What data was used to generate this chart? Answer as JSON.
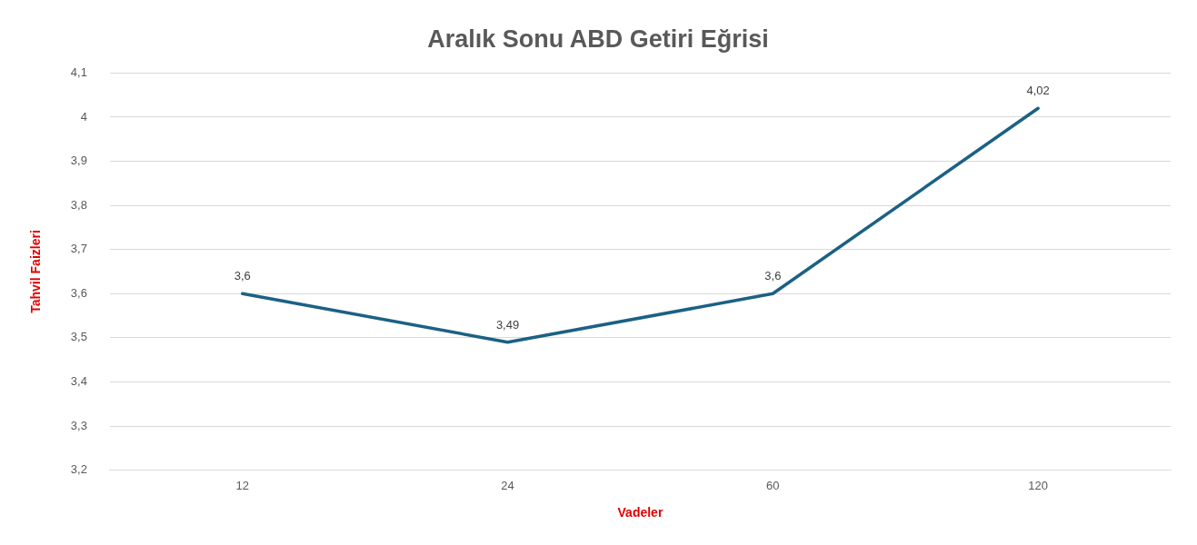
{
  "chart_data": {
    "type": "line",
    "title": "Aralık Sonu ABD Getiri Eğrisi",
    "xlabel": "Vadeler",
    "ylabel": "Tahvil Faizleri",
    "categories": [
      "12",
      "24",
      "60",
      "120"
    ],
    "series": [
      {
        "color": "#1b6185",
        "values": [
          3.6,
          3.49,
          3.6,
          4.02
        ],
        "value_labels": [
          "3,6",
          "3,49",
          "3,6",
          "4,02"
        ]
      }
    ],
    "ylim": [
      3.2,
      4.1
    ],
    "yticks": [
      {
        "value": 3.2,
        "label": "3,2"
      },
      {
        "value": 3.3,
        "label": "3,3"
      },
      {
        "value": 3.4,
        "label": "3,4"
      },
      {
        "value": 3.5,
        "label": "3,5"
      },
      {
        "value": 3.6,
        "label": "3,6"
      },
      {
        "value": 3.7,
        "label": "3,7"
      },
      {
        "value": 3.8,
        "label": "3,8"
      },
      {
        "value": 3.9,
        "label": "3,9"
      },
      {
        "value": 4,
        "label": "4"
      },
      {
        "value": 4.1,
        "label": "4,1"
      }
    ],
    "grid": "y",
    "legend": false,
    "marker": "none",
    "line_style": "solid"
  }
}
